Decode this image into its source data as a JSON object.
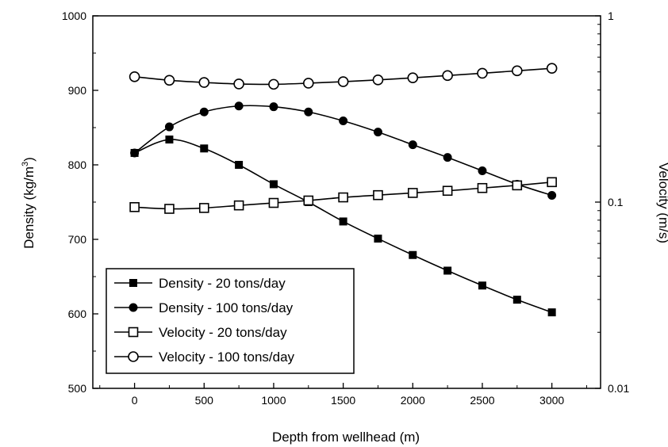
{
  "chart_data": {
    "type": "line",
    "xlabel": "Depth from wellhead (m)",
    "ylabel_left": "Density (kg/m",
    "ylabel_left_sup": "3",
    "ylabel_left_end": ")",
    "ylabel_right": "Velocity (m/s)",
    "xlim": [
      -300,
      3350
    ],
    "ylim_left": [
      500,
      1000
    ],
    "ylim_right": [
      0.01,
      1
    ],
    "right_axis_scale": "log",
    "grid": false,
    "legend_position": "bottom-left",
    "x_ticks": [
      0,
      500,
      1000,
      1500,
      2000,
      2500,
      3000
    ],
    "x_tick_labels": [
      "0",
      "500",
      "1000",
      "1500",
      "2000",
      "2500",
      "3000"
    ],
    "y_left_ticks": [
      500,
      600,
      700,
      800,
      900,
      1000
    ],
    "y_left_tick_labels": [
      "500",
      "600",
      "700",
      "800",
      "900",
      "1000"
    ],
    "y_right_ticks": [
      0.01,
      0.1,
      1
    ],
    "y_right_tick_labels": [
      "0.01",
      "0.1",
      "1"
    ],
    "x": [
      0,
      250,
      500,
      750,
      1000,
      1250,
      1500,
      1750,
      2000,
      2250,
      2500,
      2750,
      3000
    ],
    "series": [
      {
        "name": "Density - 20 tons/day",
        "axis": "left",
        "marker": "filled-square",
        "values": [
          816,
          834,
          822,
          800,
          774,
          750,
          724,
          701,
          679,
          658,
          638,
          619,
          602
        ]
      },
      {
        "name": "Density - 100 tons/day",
        "axis": "left",
        "marker": "filled-circle",
        "values": [
          816,
          851,
          871,
          879,
          878,
          871,
          859,
          844,
          827,
          810,
          792,
          774,
          759
        ]
      },
      {
        "name": "Velocity - 20 tons/day",
        "axis": "right",
        "marker": "open-square",
        "values": [
          0.094,
          0.092,
          0.093,
          0.096,
          0.099,
          0.102,
          0.106,
          0.109,
          0.112,
          0.115,
          0.119,
          0.123,
          0.128
        ]
      },
      {
        "name": "Velocity - 100 tons/day",
        "axis": "right",
        "marker": "open-circle",
        "values": [
          0.471,
          0.451,
          0.439,
          0.431,
          0.429,
          0.435,
          0.443,
          0.453,
          0.465,
          0.478,
          0.492,
          0.507,
          0.523
        ]
      }
    ]
  }
}
